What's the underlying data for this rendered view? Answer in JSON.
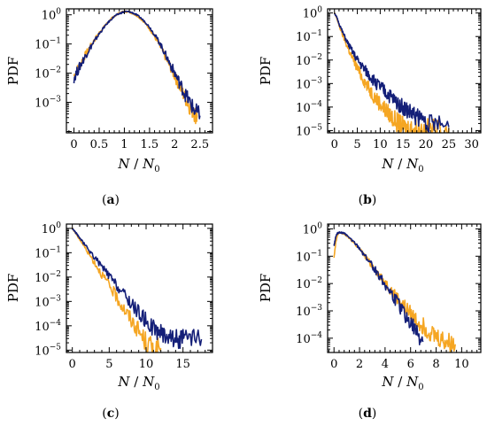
{
  "chart_data": [
    {
      "type": "line",
      "panel": "a",
      "caption": "(a)",
      "xlabel": "N/N₀",
      "ylabel": "PDF",
      "xscale": "linear",
      "yscale": "log",
      "xlim": [
        -0.15,
        2.75
      ],
      "ylim": [
        9e-05,
        1.6
      ],
      "xticks": [
        0,
        0.5,
        1,
        1.5,
        2,
        2.5
      ],
      "xtick_labels": [
        "0",
        "0.5",
        "1",
        "1.5",
        "2",
        "2.5"
      ],
      "yticks": [
        0.001,
        0.01,
        0.1,
        1
      ],
      "ytick_exponents": [
        "−3",
        "−2",
        "−1",
        "0"
      ],
      "series": [
        {
          "color": "#f5a623",
          "x": [
            0.0,
            0.1,
            0.2,
            0.3,
            0.4,
            0.5,
            0.6,
            0.7,
            0.8,
            0.9,
            1.0,
            1.1,
            1.2,
            1.3,
            1.4,
            1.5,
            1.6,
            1.7,
            1.8,
            1.9,
            2.0,
            2.1,
            2.2,
            2.3,
            2.4,
            2.45
          ],
          "y": [
            0.008,
            0.017,
            0.035,
            0.07,
            0.13,
            0.24,
            0.4,
            0.62,
            0.9,
            1.15,
            1.3,
            1.25,
            1.05,
            0.8,
            0.55,
            0.33,
            0.18,
            0.09,
            0.04,
            0.018,
            0.008,
            0.0035,
            0.0015,
            0.0007,
            0.0004,
            0.0003
          ]
        },
        {
          "color": "#141f78",
          "x": [
            0.0,
            0.1,
            0.2,
            0.3,
            0.4,
            0.5,
            0.6,
            0.7,
            0.8,
            0.9,
            1.0,
            1.1,
            1.2,
            1.3,
            1.4,
            1.5,
            1.6,
            1.7,
            1.8,
            1.9,
            2.0,
            2.1,
            2.2,
            2.3,
            2.4,
            2.5
          ],
          "y": [
            0.007,
            0.015,
            0.032,
            0.065,
            0.12,
            0.22,
            0.38,
            0.6,
            0.88,
            1.1,
            1.28,
            1.27,
            1.1,
            0.85,
            0.6,
            0.38,
            0.21,
            0.11,
            0.05,
            0.022,
            0.01,
            0.0045,
            0.002,
            0.001,
            0.0005,
            0.00035
          ]
        }
      ]
    },
    {
      "type": "line",
      "panel": "b",
      "caption": "(b)",
      "xlabel": "N/N₀",
      "ylabel": "PDF",
      "xscale": "linear",
      "yscale": "log",
      "xlim": [
        -1.5,
        32
      ],
      "ylim": [
        8e-06,
        1.5
      ],
      "xticks": [
        0,
        5,
        10,
        15,
        20,
        25,
        30
      ],
      "xtick_labels": [
        "0",
        "5",
        "10",
        "15",
        "20",
        "25",
        "30"
      ],
      "yticks": [
        1e-05,
        0.0001,
        0.001,
        0.01,
        0.1,
        1
      ],
      "ytick_exponents": [
        "−5",
        "−4",
        "−3",
        "−2",
        "−1",
        "0"
      ],
      "series": [
        {
          "color": "#f5a623",
          "x": [
            0,
            0.5,
            1,
            2,
            3,
            4,
            5,
            6,
            7,
            8,
            9,
            10,
            11,
            12,
            13,
            14,
            15,
            16,
            17,
            18,
            20,
            22,
            25
          ],
          "y": [
            1.0,
            0.6,
            0.3,
            0.09,
            0.03,
            0.011,
            0.0045,
            0.0019,
            0.0009,
            0.00045,
            0.00024,
            0.00014,
            8e-05,
            5e-05,
            3e-05,
            2e-05,
            1.5e-05,
            1.3e-05,
            1.2e-05,
            1.2e-05,
            1.2e-05,
            1.2e-05,
            1.2e-05
          ]
        },
        {
          "color": "#141f78",
          "x": [
            0,
            0.5,
            1,
            2,
            3,
            4,
            5,
            6,
            7,
            8,
            9,
            10,
            11,
            12,
            13,
            14,
            15,
            16,
            17,
            18,
            20,
            22,
            25
          ],
          "y": [
            1.0,
            0.65,
            0.35,
            0.12,
            0.048,
            0.021,
            0.01,
            0.0055,
            0.0031,
            0.0018,
            0.0011,
            0.0007,
            0.00045,
            0.0003,
            0.0002,
            0.00014,
            0.0001,
            7e-05,
            5e-05,
            4e-05,
            2.5e-05,
            1.8e-05,
            1.4e-05
          ]
        }
      ]
    },
    {
      "type": "line",
      "panel": "c",
      "caption": "(c)",
      "xlabel": "N/N₀",
      "ylabel": "PDF",
      "xscale": "linear",
      "yscale": "log",
      "xlim": [
        -0.8,
        19
      ],
      "ylim": [
        8e-06,
        1.5
      ],
      "xticks": [
        0,
        5,
        10,
        15
      ],
      "xtick_labels": [
        "0",
        "5",
        "10",
        "15"
      ],
      "yticks": [
        1e-05,
        0.0001,
        0.001,
        0.01,
        0.1,
        1
      ],
      "ytick_exponents": [
        "−5",
        "−4",
        "−3",
        "−2",
        "−1",
        "0"
      ],
      "series": [
        {
          "color": "#f5a623",
          "x": [
            0,
            0.5,
            1,
            2,
            3,
            4,
            5,
            6,
            7,
            8,
            9,
            10,
            11,
            12
          ],
          "y": [
            1.0,
            0.6,
            0.35,
            0.12,
            0.04,
            0.013,
            0.0045,
            0.0015,
            0.0005,
            0.00017,
            6e-05,
            2e-05,
            1.2e-05,
            1.2e-05
          ]
        },
        {
          "color": "#141f78",
          "x": [
            0,
            0.5,
            1,
            2,
            3,
            4,
            5,
            6,
            7,
            8,
            9,
            10,
            11,
            12,
            13,
            14,
            15,
            16,
            17.5
          ],
          "y": [
            1.0,
            0.65,
            0.4,
            0.16,
            0.065,
            0.027,
            0.011,
            0.0045,
            0.0019,
            0.0008,
            0.00035,
            0.00016,
            8e-05,
            5e-05,
            4e-05,
            3e-05,
            2.8e-05,
            2.8e-05,
            2.8e-05
          ]
        }
      ]
    },
    {
      "type": "line",
      "panel": "d",
      "caption": "(d)",
      "xlabel": "N/N₀",
      "ylabel": "PDF",
      "xscale": "linear",
      "yscale": "log",
      "xlim": [
        -0.5,
        11.5
      ],
      "ylim": [
        3e-05,
        1.5
      ],
      "xticks": [
        0,
        2,
        4,
        6,
        8,
        10
      ],
      "xtick_labels": [
        "0",
        "2",
        "4",
        "6",
        "8",
        "10"
      ],
      "yticks": [
        0.0001,
        0.001,
        0.01,
        0.1,
        1
      ],
      "ytick_exponents": [
        "−4",
        "−3",
        "−2",
        "−1",
        "0"
      ],
      "series": [
        {
          "color": "#f5a623",
          "x": [
            0,
            0.15,
            0.3,
            0.5,
            0.8,
            1,
            1.5,
            2,
            2.5,
            3,
            3.5,
            4,
            4.5,
            5,
            5.5,
            6,
            6.5,
            7,
            7.5,
            8,
            8.5,
            9,
            9.5
          ],
          "y": [
            0.1,
            0.35,
            0.65,
            0.72,
            0.65,
            0.55,
            0.33,
            0.18,
            0.09,
            0.045,
            0.022,
            0.011,
            0.0055,
            0.0028,
            0.0015,
            0.0008,
            0.00045,
            0.00028,
            0.00018,
            0.00012,
            9e-05,
            7e-05,
            6e-05
          ]
        },
        {
          "color": "#141f78",
          "x": [
            0,
            0.15,
            0.3,
            0.5,
            0.8,
            1,
            1.5,
            2,
            2.5,
            3,
            3.5,
            4,
            4.5,
            5,
            5.5,
            6,
            6.5,
            7
          ],
          "y": [
            0.25,
            0.55,
            0.72,
            0.75,
            0.68,
            0.58,
            0.35,
            0.19,
            0.095,
            0.045,
            0.021,
            0.0095,
            0.0042,
            0.0018,
            0.0008,
            0.00035,
            0.00015,
            8e-05
          ]
        }
      ]
    }
  ]
}
